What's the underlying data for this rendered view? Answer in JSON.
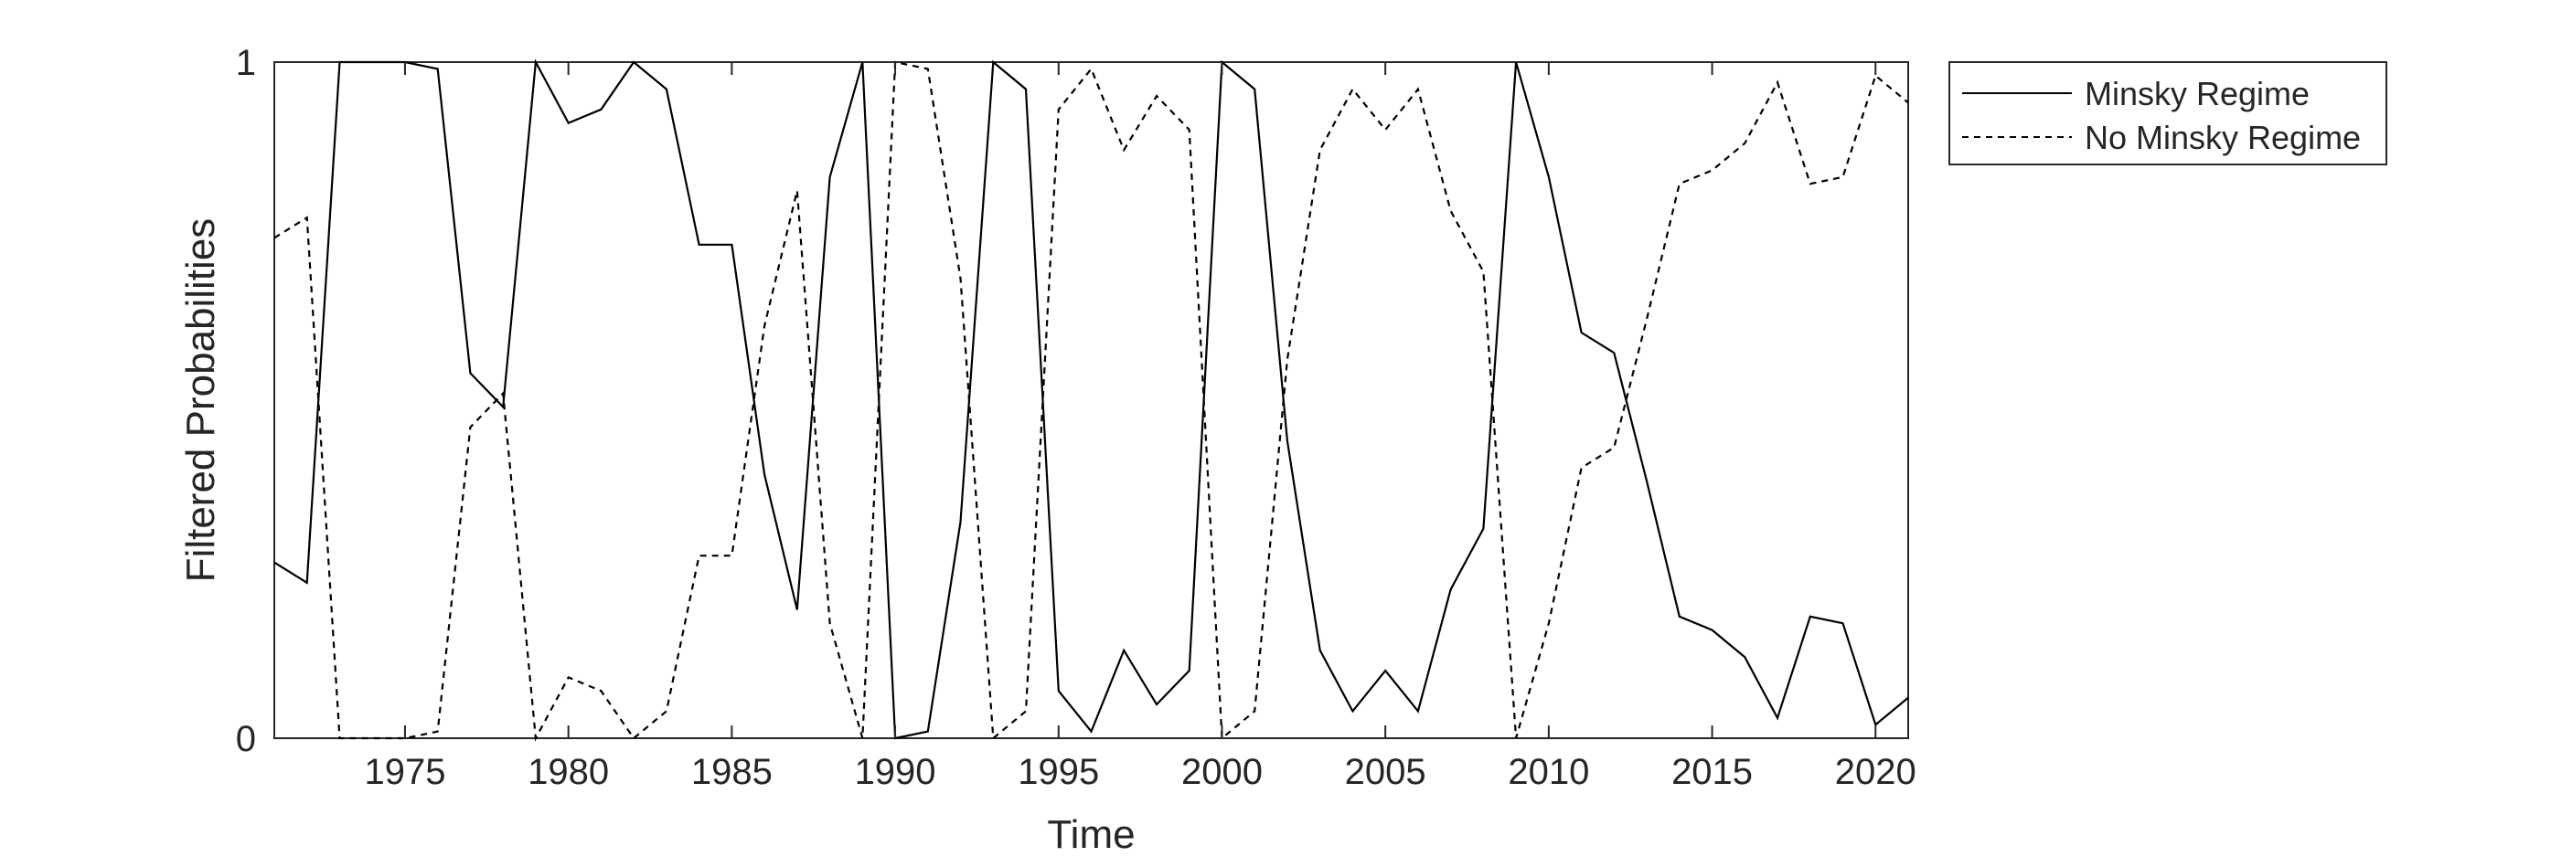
{
  "chart_data": {
    "type": "line",
    "title": "",
    "xlabel": "Time",
    "ylabel": "Filtered Probabilities",
    "xlim": [
      1971,
      2021
    ],
    "ylim": [
      0,
      1
    ],
    "xticks": [
      1975,
      1980,
      1985,
      1990,
      1995,
      2000,
      2005,
      2010,
      2015,
      2020
    ],
    "yticks": [
      0,
      1
    ],
    "grid": false,
    "legend_position": "outside-top-right",
    "x": [
      1971,
      1972,
      1973,
      1974,
      1975,
      1976,
      1977,
      1978,
      1979,
      1980,
      1981,
      1982,
      1983,
      1984,
      1985,
      1986,
      1987,
      1988,
      1989,
      1990,
      1991,
      1992,
      1993,
      1994,
      1995,
      1996,
      1997,
      1998,
      1999,
      2000,
      2001,
      2002,
      2003,
      2004,
      2005,
      2006,
      2007,
      2008,
      2009,
      2010,
      2011,
      2012,
      2013,
      2014,
      2015,
      2016,
      2017,
      2018,
      2019,
      2020,
      2021
    ],
    "series": [
      {
        "name": "Minsky Regime",
        "style": "solid",
        "color": "#000000",
        "values": [
          0.26,
          0.23,
          1.0,
          1.0,
          1.0,
          0.99,
          0.54,
          0.49,
          1.0,
          0.91,
          0.93,
          1.0,
          0.96,
          0.73,
          0.73,
          0.39,
          0.19,
          0.83,
          1.0,
          0.0,
          0.01,
          0.32,
          1.0,
          0.96,
          0.07,
          0.01,
          0.13,
          0.05,
          0.1,
          1.0,
          0.96,
          0.44,
          0.13,
          0.04,
          0.1,
          0.04,
          0.22,
          0.31,
          1.0,
          0.83,
          0.6,
          0.57,
          0.38,
          0.18,
          0.16,
          0.12,
          0.03,
          0.18,
          0.17,
          0.02,
          0.06
        ]
      },
      {
        "name": "No Minsky Regime",
        "style": "dashed",
        "color": "#000000",
        "values": [
          0.74,
          0.77,
          0.0,
          0.0,
          0.0,
          0.01,
          0.46,
          0.51,
          0.0,
          0.09,
          0.07,
          0.0,
          0.04,
          0.27,
          0.27,
          0.61,
          0.81,
          0.17,
          0.0,
          1.0,
          0.99,
          0.68,
          0.0,
          0.04,
          0.93,
          0.99,
          0.87,
          0.95,
          0.9,
          0.0,
          0.04,
          0.56,
          0.87,
          0.96,
          0.9,
          0.96,
          0.78,
          0.69,
          0.0,
          0.17,
          0.4,
          0.43,
          0.62,
          0.82,
          0.84,
          0.88,
          0.97,
          0.82,
          0.83,
          0.98,
          0.94
        ]
      }
    ]
  }
}
